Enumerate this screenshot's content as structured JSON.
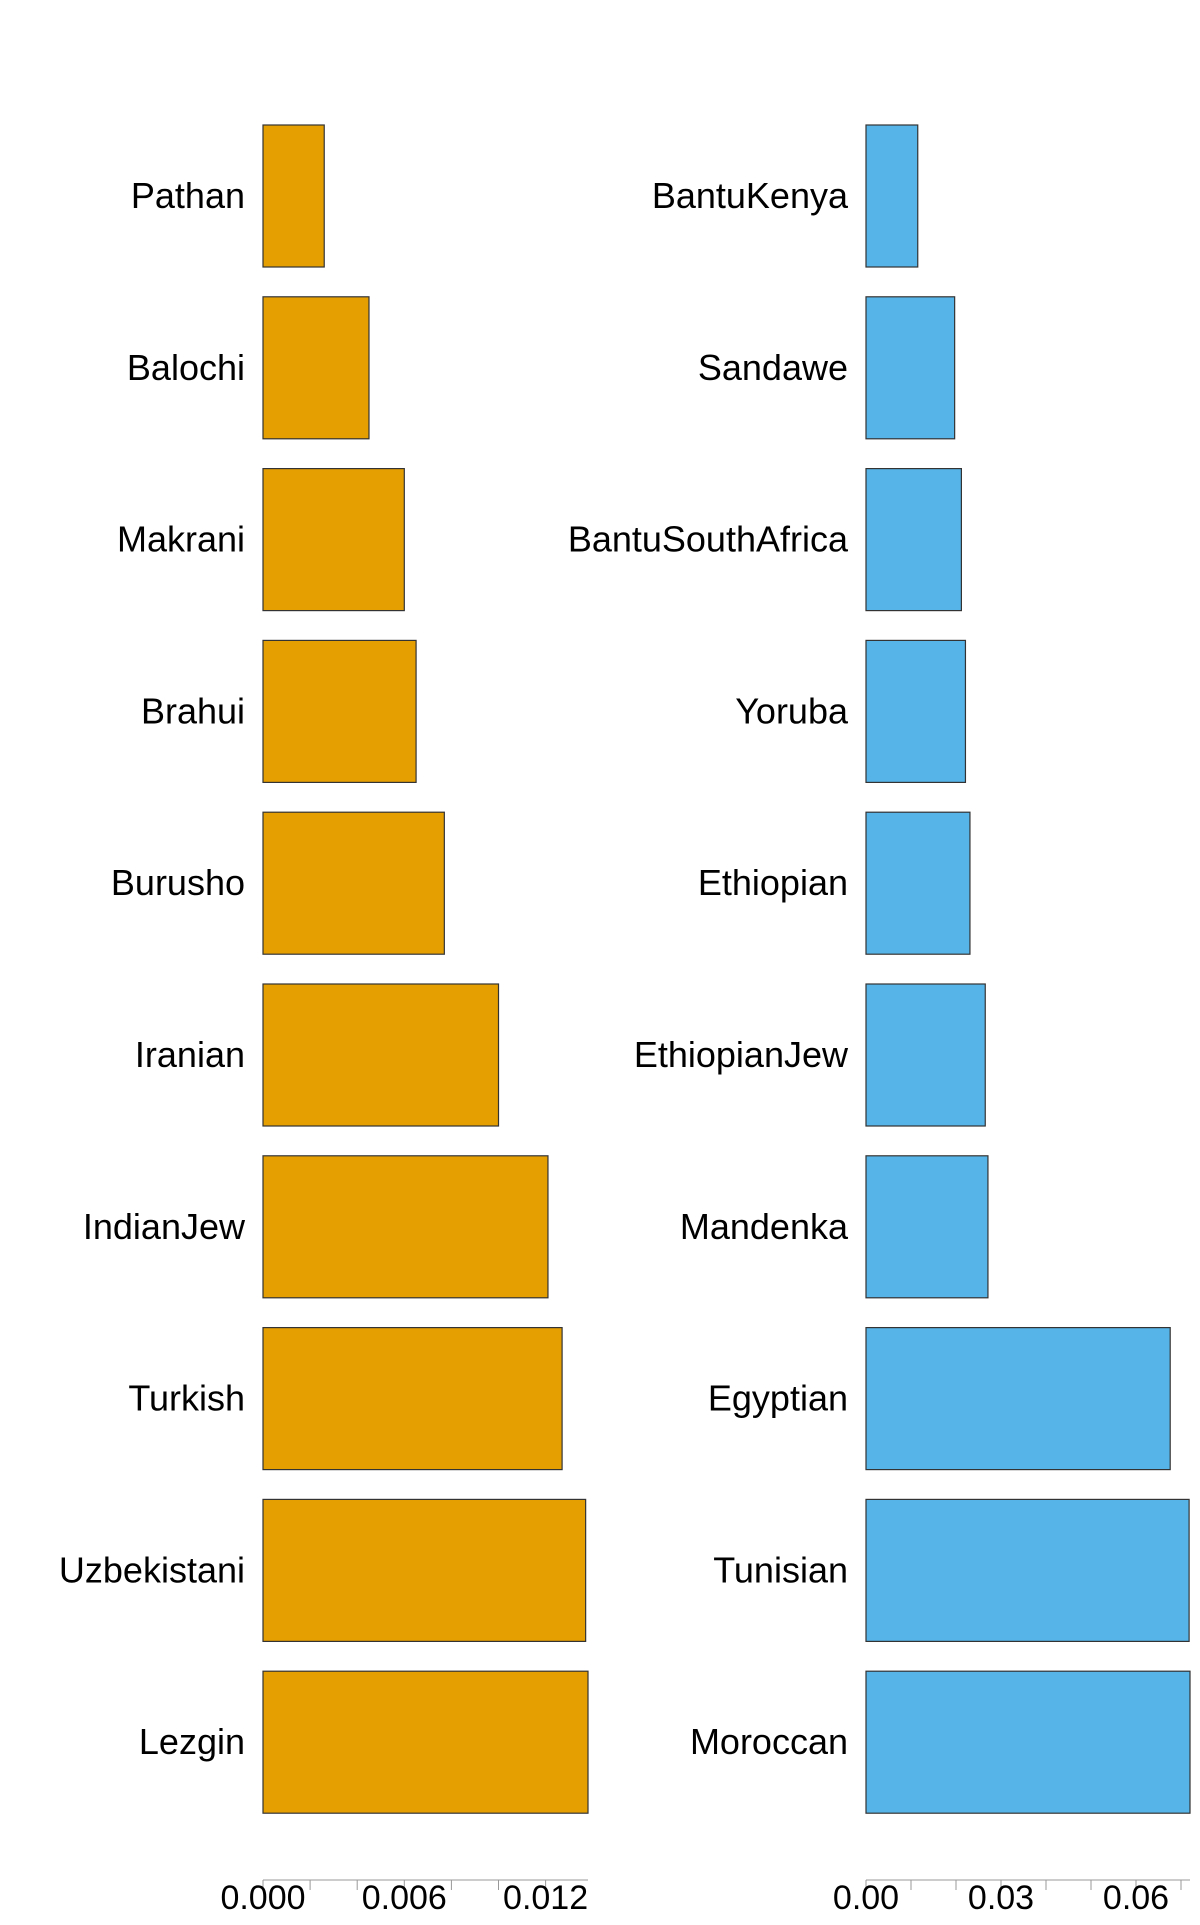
{
  "chart_data": [
    {
      "type": "bar",
      "orientation": "horizontal",
      "title": "",
      "xlabel": "",
      "ylabel": "",
      "categories": [
        "Pathan",
        "Balochi",
        "Makrani",
        "Brahui",
        "Burusho",
        "Iranian",
        "IndianJew",
        "Turkish",
        "Uzbekistani",
        "Lezgin"
      ],
      "values": [
        0.0026,
        0.0045,
        0.006,
        0.0065,
        0.0077,
        0.01,
        0.0121,
        0.0127,
        0.0137,
        0.0138
      ],
      "xlim": [
        0,
        0.0138
      ],
      "ticks": [
        0,
        0.002,
        0.004,
        0.006,
        0.008,
        0.01,
        0.012
      ],
      "tick_labels": [
        "0.000",
        "",
        "",
        "0.006",
        "",
        "",
        "0.012"
      ],
      "color": "#E69F00",
      "grid": false
    },
    {
      "type": "bar",
      "orientation": "horizontal",
      "title": "",
      "xlabel": "",
      "ylabel": "",
      "categories": [
        "BantuKenya",
        "Sandawe",
        "BantuSouthAfrica",
        "Yoruba",
        "Ethiopian",
        "EthiopianJew",
        "Mandenka",
        "Egyptian",
        "Tunisian",
        "Moroccan"
      ],
      "values": [
        0.0115,
        0.0197,
        0.0212,
        0.0221,
        0.0231,
        0.0265,
        0.0271,
        0.0676,
        0.0718,
        0.072
      ],
      "xlim": [
        0,
        0.072
      ],
      "ticks": [
        0,
        0.01,
        0.02,
        0.03,
        0.04,
        0.05,
        0.06,
        0.07
      ],
      "tick_labels": [
        "0.00",
        "",
        "",
        "0.03",
        "",
        "",
        "0.06",
        ""
      ],
      "color": "#56B4E9",
      "grid": false
    }
  ]
}
